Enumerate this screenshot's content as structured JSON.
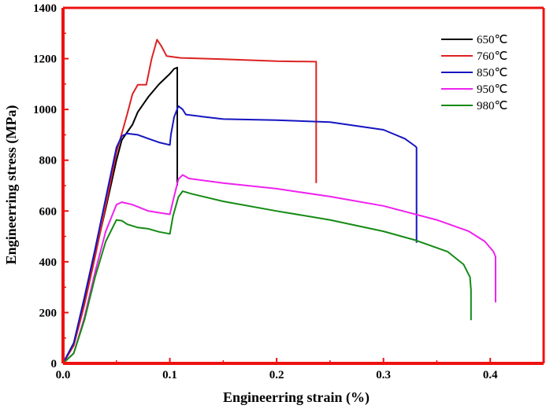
{
  "chart_data": {
    "type": "line",
    "title": "",
    "xlabel": "Engineerring strain (%)",
    "ylabel": "Engineerring stress (MPa)",
    "xlim": [
      0,
      0.45
    ],
    "ylim": [
      0,
      1400
    ],
    "xticks": [
      0.0,
      0.1,
      0.2,
      0.3,
      0.4
    ],
    "xtick_labels": [
      "0.0",
      "0.1",
      "0.2",
      "0.3",
      "0.4"
    ],
    "yticks": [
      0,
      200,
      400,
      600,
      800,
      1000,
      1200,
      1400
    ],
    "ytick_labels": [
      "0",
      "200",
      "400",
      "600",
      "800",
      "1000",
      "1200",
      "1400"
    ],
    "grid": false,
    "legend_position": "top-right",
    "axis_color": "#ee1111",
    "series": [
      {
        "name": "650℃",
        "color": "#000000",
        "points": [
          [
            0,
            0
          ],
          [
            0.01,
            80
          ],
          [
            0.02,
            250
          ],
          [
            0.03,
            430
          ],
          [
            0.04,
            610
          ],
          [
            0.05,
            800
          ],
          [
            0.055,
            880
          ],
          [
            0.06,
            910
          ],
          [
            0.065,
            940
          ],
          [
            0.07,
            990
          ],
          [
            0.08,
            1050
          ],
          [
            0.09,
            1100
          ],
          [
            0.1,
            1140
          ],
          [
            0.104,
            1160
          ],
          [
            0.107,
            1165
          ],
          [
            0.107,
            700
          ]
        ]
      },
      {
        "name": "760℃",
        "color": "#dd2222",
        "points": [
          [
            0,
            0
          ],
          [
            0.01,
            70
          ],
          [
            0.02,
            230
          ],
          [
            0.03,
            420
          ],
          [
            0.04,
            620
          ],
          [
            0.05,
            830
          ],
          [
            0.06,
            980
          ],
          [
            0.065,
            1060
          ],
          [
            0.07,
            1097
          ],
          [
            0.078,
            1097
          ],
          [
            0.083,
            1200
          ],
          [
            0.088,
            1275
          ],
          [
            0.092,
            1250
          ],
          [
            0.097,
            1210
          ],
          [
            0.11,
            1203
          ],
          [
            0.15,
            1198
          ],
          [
            0.2,
            1190
          ],
          [
            0.235,
            1188
          ],
          [
            0.237,
            1188
          ],
          [
            0.237,
            710
          ]
        ]
      },
      {
        "name": "850℃",
        "color": "#1515c0",
        "points": [
          [
            0,
            0
          ],
          [
            0.01,
            80
          ],
          [
            0.02,
            260
          ],
          [
            0.03,
            450
          ],
          [
            0.04,
            650
          ],
          [
            0.05,
            850
          ],
          [
            0.055,
            895
          ],
          [
            0.06,
            905
          ],
          [
            0.07,
            900
          ],
          [
            0.08,
            885
          ],
          [
            0.09,
            870
          ],
          [
            0.1,
            860
          ],
          [
            0.101,
            900
          ],
          [
            0.104,
            970
          ],
          [
            0.108,
            1013
          ],
          [
            0.112,
            1000
          ],
          [
            0.115,
            980
          ],
          [
            0.13,
            972
          ],
          [
            0.15,
            962
          ],
          [
            0.2,
            958
          ],
          [
            0.25,
            950
          ],
          [
            0.3,
            920
          ],
          [
            0.32,
            885
          ],
          [
            0.33,
            855
          ],
          [
            0.331,
            850
          ],
          [
            0.331,
            475
          ]
        ]
      },
      {
        "name": "950℃",
        "color": "#ee22ee",
        "points": [
          [
            0,
            0
          ],
          [
            0.01,
            40
          ],
          [
            0.02,
            180
          ],
          [
            0.03,
            360
          ],
          [
            0.04,
            520
          ],
          [
            0.05,
            625
          ],
          [
            0.055,
            635
          ],
          [
            0.065,
            625
          ],
          [
            0.08,
            600
          ],
          [
            0.095,
            590
          ],
          [
            0.1,
            587
          ],
          [
            0.103,
            640
          ],
          [
            0.108,
            725
          ],
          [
            0.112,
            742
          ],
          [
            0.118,
            728
          ],
          [
            0.15,
            710
          ],
          [
            0.2,
            688
          ],
          [
            0.25,
            657
          ],
          [
            0.3,
            620
          ],
          [
            0.35,
            565
          ],
          [
            0.38,
            520
          ],
          [
            0.395,
            480
          ],
          [
            0.403,
            440
          ],
          [
            0.405,
            420
          ],
          [
            0.405,
            240
          ]
        ]
      },
      {
        "name": "980℃",
        "color": "#148a14",
        "points": [
          [
            0,
            0
          ],
          [
            0.01,
            40
          ],
          [
            0.02,
            170
          ],
          [
            0.03,
            340
          ],
          [
            0.04,
            480
          ],
          [
            0.05,
            565
          ],
          [
            0.055,
            562
          ],
          [
            0.06,
            548
          ],
          [
            0.07,
            535
          ],
          [
            0.08,
            530
          ],
          [
            0.09,
            518
          ],
          [
            0.1,
            510
          ],
          [
            0.103,
            580
          ],
          [
            0.108,
            655
          ],
          [
            0.112,
            678
          ],
          [
            0.12,
            668
          ],
          [
            0.15,
            638
          ],
          [
            0.2,
            600
          ],
          [
            0.25,
            565
          ],
          [
            0.3,
            520
          ],
          [
            0.33,
            485
          ],
          [
            0.36,
            440
          ],
          [
            0.375,
            390
          ],
          [
            0.381,
            340
          ],
          [
            0.382,
            290
          ],
          [
            0.382,
            170
          ]
        ]
      }
    ]
  }
}
